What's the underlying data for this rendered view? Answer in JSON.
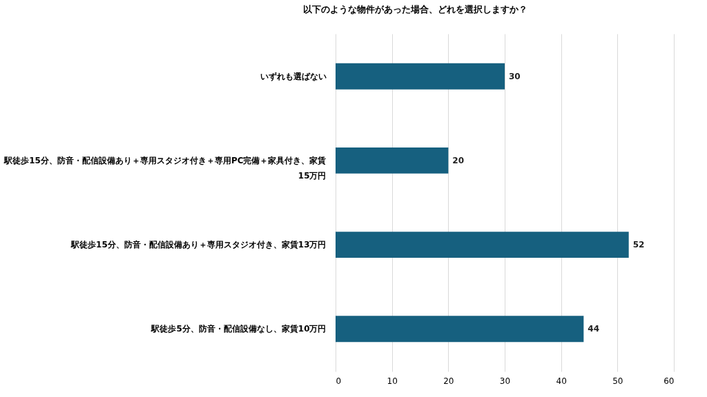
{
  "chart_data": {
    "type": "bar",
    "orientation": "horizontal",
    "title": "以下のような物件があった場合、どれを選択しますか？",
    "categories": [
      "いずれも選ばない",
      "駅徒歩15分、防音・配信設備あり＋専用スタジオ付き＋専用PC完備＋家具付き、家賃15万円",
      "駅徒歩15分、防音・配信設備あり＋専用スタジオ付き、家賃13万円",
      "駅徒歩5分、防音・配信設備なし、家賃10万円"
    ],
    "values": [
      30,
      20,
      52,
      44
    ],
    "color": "#16607f",
    "xlim": [
      0,
      60
    ],
    "xticks": [
      0,
      10,
      20,
      30,
      40,
      50,
      60
    ],
    "grid": "x",
    "data_labels": true
  }
}
